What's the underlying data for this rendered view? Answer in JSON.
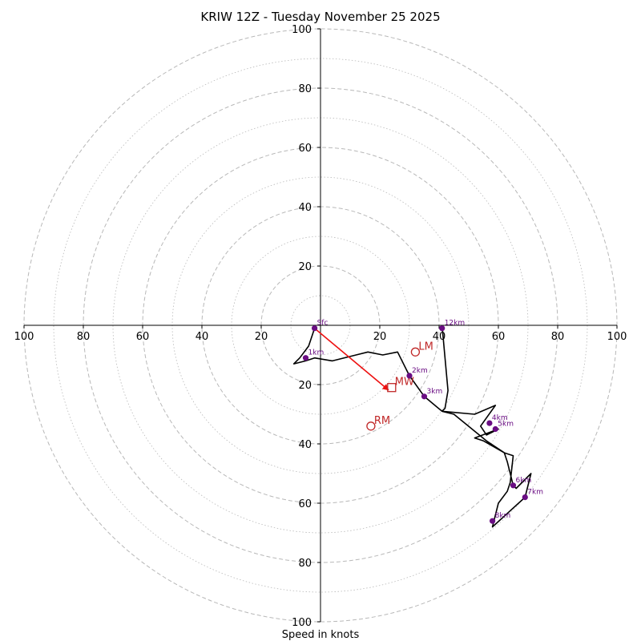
{
  "chart_data": {
    "type": "hodograph",
    "title": "KRIW 12Z - Tuesday November 25 2025",
    "xlabel": "Speed in knots",
    "range": [
      -100,
      100
    ],
    "ring_major": [
      20,
      40,
      60,
      80,
      100
    ],
    "ring_minor": [
      10,
      30,
      50,
      70,
      90
    ],
    "axis_tick_values": [
      20,
      40,
      60,
      80,
      100
    ],
    "axis_tick_labels": [
      "20",
      "40",
      "60",
      "80",
      "100"
    ],
    "colors": {
      "ring": "#b8b8b8",
      "axis": "#000000",
      "trace": "#000000",
      "point": "#6a0d83",
      "motion": "#c02828",
      "arrow": "#ee1111"
    },
    "trace": [
      [
        -2,
        -1
      ],
      [
        -4,
        -7
      ],
      [
        -7,
        -11
      ],
      [
        -9,
        -13
      ],
      [
        -5,
        -12
      ],
      [
        -2,
        -11
      ],
      [
        4,
        -12
      ],
      [
        12,
        -10
      ],
      [
        16,
        -9
      ],
      [
        21,
        -10
      ],
      [
        26,
        -9
      ],
      [
        30,
        -17
      ],
      [
        35,
        -24
      ],
      [
        41,
        -29
      ],
      [
        52,
        -30
      ],
      [
        59,
        -27
      ],
      [
        54,
        -34
      ],
      [
        56,
        -37
      ],
      [
        60,
        -35
      ],
      [
        52,
        -38
      ],
      [
        55,
        -39
      ],
      [
        62,
        -43
      ],
      [
        63,
        -46
      ],
      [
        65,
        -54
      ],
      [
        66,
        -55
      ],
      [
        71,
        -50
      ],
      [
        69,
        -58
      ],
      [
        58,
        -68
      ],
      [
        60,
        -60
      ],
      [
        63,
        -56
      ],
      [
        64,
        -53
      ],
      [
        65,
        -44
      ],
      [
        62,
        -43
      ],
      [
        56,
        -39
      ],
      [
        45,
        -30
      ],
      [
        41,
        -29
      ],
      [
        42,
        -28
      ],
      [
        43,
        -22
      ],
      [
        41,
        0
      ]
    ],
    "points": [
      {
        "label": "Sfc",
        "u": -2,
        "v": -1
      },
      {
        "label": "1km",
        "u": -5,
        "v": -11
      },
      {
        "label": "2km",
        "u": 30,
        "v": -17
      },
      {
        "label": "3km",
        "u": 35,
        "v": -24
      },
      {
        "label": "4km",
        "u": 57,
        "v": -33
      },
      {
        "label": "5km",
        "u": 59,
        "v": -35
      },
      {
        "label": "6km",
        "u": 65,
        "v": -54
      },
      {
        "label": "7km",
        "u": 69,
        "v": -58
      },
      {
        "label": "8km",
        "u": 58,
        "v": -66
      },
      {
        "label": "12km",
        "u": 41,
        "v": -1
      }
    ],
    "storm_motion": [
      {
        "label": "LM",
        "u": 32,
        "v": -9,
        "marker": "circle"
      },
      {
        "label": "MW",
        "u": 24,
        "v": -21,
        "marker": "square"
      },
      {
        "label": "RM",
        "u": 17,
        "v": -34,
        "marker": "circle"
      }
    ],
    "shear_vector": {
      "from": [
        -2,
        -1
      ],
      "to": [
        24,
        -21
      ]
    }
  }
}
